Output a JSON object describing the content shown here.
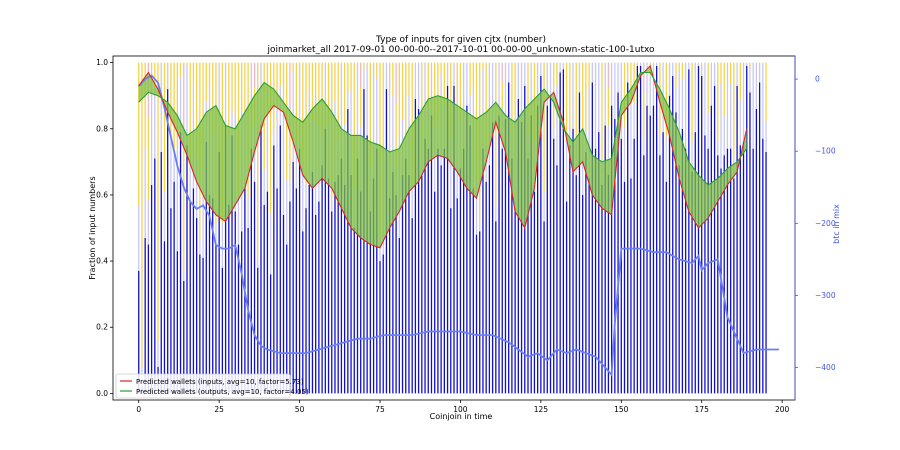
{
  "chart_data": {
    "type": "bar",
    "title": "Type of inputs for given cjtx (number)",
    "subtitle": "joinmarket_all 2017-09-01 00-00-00--2017-10-01 00-00-00_unknown-static-100-1utxo",
    "xlabel": "Coinjoin in time",
    "ylabel": "Fraction of input numbers",
    "y2label": "btc in mix",
    "xlim": [
      -8,
      204
    ],
    "ylim": [
      -0.02,
      1.02
    ],
    "y2lim": [
      -445,
      32
    ],
    "xticks": [
      0,
      25,
      50,
      75,
      100,
      125,
      150,
      175,
      200
    ],
    "yticks": [
      0.0,
      0.2,
      0.4,
      0.6,
      0.8,
      1.0
    ],
    "y2ticks": [
      0,
      -100,
      -200,
      -300,
      -400
    ],
    "grid": false,
    "legend_position": "lower-left",
    "colors": {
      "bar_blue": "#1010cc",
      "bar_lavender": "#c8c8f4",
      "bar_yellow": "#f6d24a",
      "bar_pink": "#f2b5c0",
      "inputs_line": "#d62728",
      "outputs_line": "#2ca02c",
      "fill": "#7fbf3f",
      "btc_line": "#6b7ff0",
      "y2_axis": "#4455dd"
    },
    "stacked_bars": {
      "categories": "coinjoin index 0-199",
      "stack_order_bottom_to_top": [
        "blue fraction",
        "lavender",
        "yellow",
        "pink"
      ],
      "blue_fraction": [
        0.37,
        0.02,
        0.47,
        0.45,
        0.63,
        0.71,
        0.08,
        0.73,
        0.46,
        0.92,
        0.56,
        0.64,
        0.43,
        0.79,
        0.34,
        0.75,
        0.58,
        0.62,
        0.53,
        0.42,
        0.41,
        0.76,
        0.6,
        0.59,
        0.45,
        0.73,
        0.38,
        0.81,
        0.57,
        0.78,
        0.55,
        0.45,
        0.49,
        0.62,
        0.5,
        0.74,
        0.64,
        0.38,
        0.81,
        0.57,
        0.61,
        0.36,
        0.75,
        0.62,
        0.81,
        0.54,
        0.45,
        0.58,
        0.7,
        0.62,
        0.74,
        0.49,
        0.56,
        0.63,
        0.67,
        0.54,
        0.58,
        0.69,
        0.8,
        0.65,
        0.55,
        0.64,
        0.66,
        0.71,
        0.63,
        0.86,
        0.66,
        0.5,
        0.71,
        0.61,
        0.92,
        0.78,
        0.55,
        0.65,
        0.74,
        0.4,
        0.42,
        0.92,
        0.59,
        0.67,
        0.6,
        0.47,
        0.66,
        0.71,
        0.66,
        0.53,
        0.89,
        0.86,
        0.66,
        0.77,
        0.74,
        0.84,
        0.61,
        0.74,
        0.69,
        0.74,
        0.93,
        0.56,
        0.93,
        0.59,
        0.68,
        0.74,
        0.87,
        0.81,
        0.62,
        0.48,
        0.49,
        0.74,
        0.64,
        0.69,
        0.82,
        0.52,
        0.84,
        0.74,
        0.83,
        0.94,
        0.71,
        0.56,
        0.89,
        0.82,
        0.93,
        0.71,
        0.84,
        0.61,
        0.87,
        0.96,
        0.52,
        0.87,
        0.9,
        0.77,
        0.69,
        0.97,
        0.98,
        0.58,
        0.75,
        0.8,
        0.66,
        0.91,
        0.6,
        0.73,
        0.65,
        0.94,
        0.74,
        0.79,
        0.63,
        0.81,
        0.66,
        0.87,
        0.83,
        0.91,
        0.77,
        0.64,
        0.94,
        0.65,
        0.77,
        0.99,
        0.99,
        0.72,
        0.87,
        0.84,
        0.87,
        0.99,
        0.72,
        0.79,
        0.64,
        0.9,
        0.96,
        0.85,
        0.69,
        0.8,
        0.74,
        0.98,
        0.67,
        0.79,
        0.99,
        0.96,
        0.78,
        0.74,
        0.87,
        0.93,
        0.72,
        0.68,
        0.72,
        0.74,
        0.74,
        0.65,
        0.93,
        0.75,
        0.76,
        0.99,
        0.91,
        0.74,
        0.86,
        0.94,
        0.77,
        0.73
      ]
    },
    "series": [
      {
        "name": "Predicted wallets (inputs, avg=10, factor=5.73)",
        "color": "#d62728",
        "x": [
          0,
          3,
          6,
          9,
          12,
          15,
          18,
          21,
          24,
          27,
          30,
          33,
          36,
          39,
          42,
          45,
          48,
          51,
          54,
          57,
          60,
          63,
          66,
          69,
          72,
          75,
          78,
          81,
          84,
          87,
          90,
          93,
          96,
          99,
          102,
          105,
          108,
          111,
          114,
          117,
          120,
          123,
          126,
          129,
          132,
          135,
          138,
          141,
          144,
          147,
          150,
          153,
          156,
          159,
          162,
          165,
          168,
          171,
          174,
          177,
          180,
          183,
          186,
          189
        ],
        "y": [
          0.93,
          0.97,
          0.92,
          0.85,
          0.79,
          0.72,
          0.64,
          0.58,
          0.54,
          0.52,
          0.57,
          0.62,
          0.73,
          0.83,
          0.87,
          0.85,
          0.76,
          0.66,
          0.62,
          0.65,
          0.62,
          0.56,
          0.5,
          0.47,
          0.45,
          0.44,
          0.5,
          0.55,
          0.61,
          0.64,
          0.7,
          0.72,
          0.71,
          0.67,
          0.62,
          0.59,
          0.7,
          0.82,
          0.73,
          0.55,
          0.5,
          0.62,
          0.88,
          0.91,
          0.82,
          0.67,
          0.7,
          0.6,
          0.56,
          0.54,
          0.84,
          0.88,
          0.96,
          0.99,
          0.88,
          0.78,
          0.65,
          0.55,
          0.5,
          0.53,
          0.58,
          0.63,
          0.67,
          0.8
        ]
      },
      {
        "name": "Predicted wallets (outputs, avg=10, factor=4.05)",
        "color": "#2ca02c",
        "x": [
          0,
          3,
          6,
          9,
          12,
          15,
          18,
          21,
          24,
          27,
          30,
          33,
          36,
          39,
          42,
          45,
          48,
          51,
          54,
          57,
          60,
          63,
          66,
          69,
          72,
          75,
          78,
          81,
          84,
          87,
          90,
          93,
          96,
          99,
          102,
          105,
          108,
          111,
          114,
          117,
          120,
          123,
          126,
          129,
          132,
          135,
          138,
          141,
          144,
          147,
          150,
          153,
          156,
          159,
          162,
          165,
          168,
          171,
          174,
          177,
          180,
          183,
          186,
          189
        ],
        "y": [
          0.88,
          0.91,
          0.9,
          0.88,
          0.84,
          0.78,
          0.8,
          0.85,
          0.87,
          0.81,
          0.8,
          0.85,
          0.9,
          0.94,
          0.92,
          0.88,
          0.84,
          0.82,
          0.86,
          0.89,
          0.85,
          0.8,
          0.78,
          0.78,
          0.76,
          0.75,
          0.73,
          0.74,
          0.8,
          0.84,
          0.89,
          0.9,
          0.89,
          0.87,
          0.85,
          0.83,
          0.85,
          0.88,
          0.84,
          0.82,
          0.86,
          0.89,
          0.92,
          0.88,
          0.8,
          0.76,
          0.8,
          0.72,
          0.7,
          0.71,
          0.88,
          0.92,
          0.97,
          0.97,
          0.92,
          0.86,
          0.79,
          0.7,
          0.66,
          0.63,
          0.65,
          0.68,
          0.7,
          0.74
        ]
      },
      {
        "name": "btc in mix",
        "color": "#6b7ff0",
        "axis": "right",
        "x": [
          0,
          2,
          4,
          6,
          8,
          10,
          12,
          14,
          16,
          18,
          20,
          22,
          24,
          26,
          28,
          30,
          32,
          34,
          36,
          38,
          40,
          44,
          48,
          52,
          56,
          60,
          64,
          68,
          72,
          76,
          80,
          85,
          90,
          95,
          100,
          105,
          110,
          115,
          118,
          121,
          124,
          127,
          130,
          133,
          136,
          139,
          142,
          145,
          147,
          148,
          150,
          152,
          156,
          160,
          164,
          168,
          172,
          174,
          175,
          177,
          180,
          183,
          186,
          188,
          192,
          196,
          199
        ],
        "y": [
          -10,
          0,
          5,
          -5,
          -40,
          -80,
          -120,
          -150,
          -170,
          -180,
          -175,
          -190,
          -230,
          -235,
          -235,
          -230,
          -270,
          -320,
          -355,
          -370,
          -375,
          -380,
          -380,
          -380,
          -375,
          -370,
          -365,
          -360,
          -360,
          -355,
          -355,
          -355,
          -350,
          -350,
          -350,
          -355,
          -355,
          -365,
          -375,
          -385,
          -380,
          -390,
          -375,
          -380,
          -375,
          -380,
          -385,
          -400,
          -410,
          -340,
          -235,
          -235,
          -235,
          -240,
          -240,
          -250,
          -255,
          -245,
          -265,
          -255,
          -250,
          -330,
          -360,
          -380,
          -375,
          -375,
          -375
        ]
      }
    ]
  }
}
